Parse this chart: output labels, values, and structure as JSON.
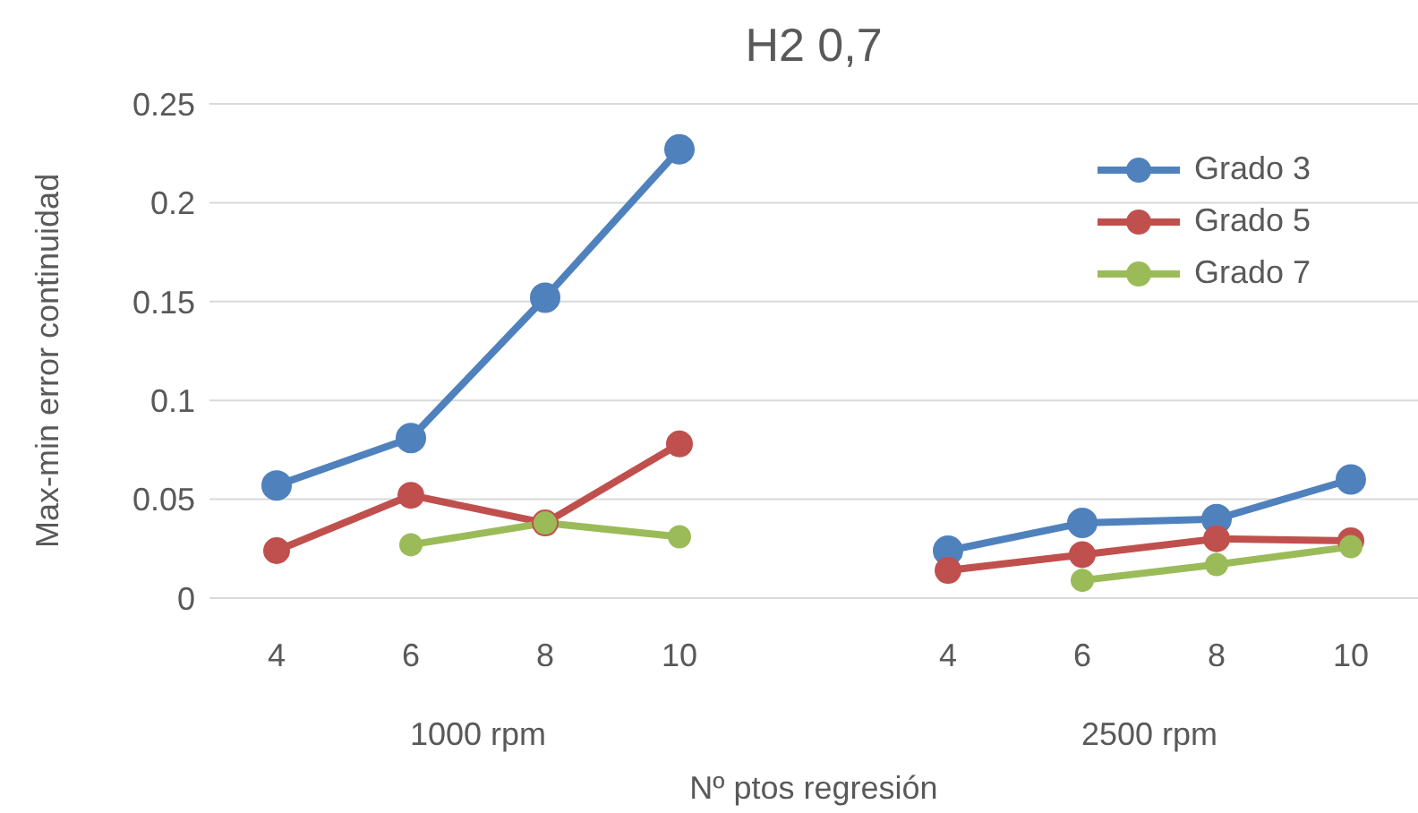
{
  "chart_data": {
    "type": "line",
    "title": "H2 0,7",
    "xlabel": "Nº ptos regresión",
    "ylabel": "Max-min error continuidad",
    "categories": [
      "4",
      "6",
      "8",
      "10",
      null,
      "4",
      "6",
      "8",
      "10"
    ],
    "annotations": [
      "1000 rpm",
      "2500 rpm"
    ],
    "series": [
      {
        "name": "Grado 3",
        "color": "#4f81bd",
        "values": [
          0.057,
          0.081,
          0.152,
          0.227,
          null,
          0.024,
          0.038,
          0.04,
          0.06
        ]
      },
      {
        "name": "Grado 5",
        "color": "#c0504d",
        "values": [
          0.024,
          0.052,
          0.038,
          0.078,
          null,
          0.014,
          0.022,
          0.03,
          0.029
        ]
      },
      {
        "name": "Grado 7",
        "color": "#9bbb59",
        "values": [
          null,
          0.027,
          0.038,
          0.031,
          null,
          null,
          0.009,
          0.017,
          0.026
        ]
      }
    ],
    "ylim": [
      0,
      0.25
    ],
    "yticks": [
      0,
      0.05,
      0.1,
      0.15,
      0.2,
      0.25
    ],
    "grid": "y",
    "legend": "top right",
    "marker": "circle",
    "line_style": "solid"
  }
}
